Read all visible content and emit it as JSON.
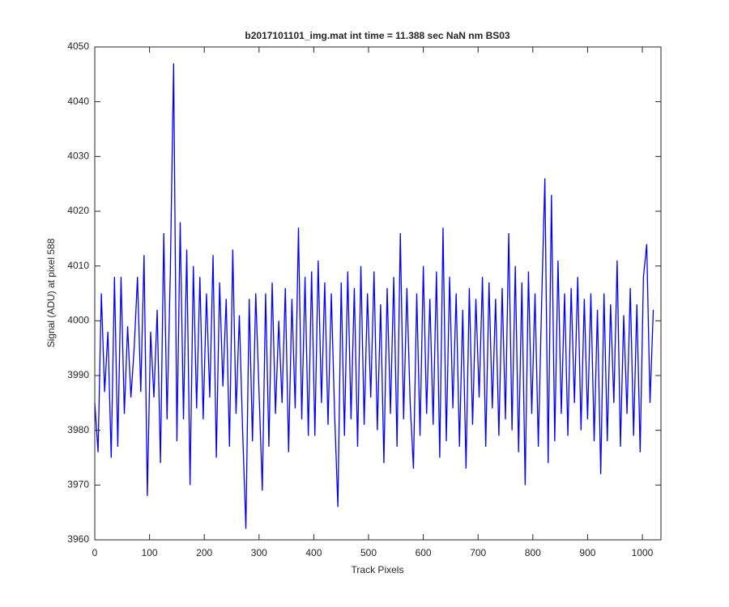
{
  "chart_data": {
    "type": "line",
    "title": "b2017101101_img.mat int time = 11.388 sec  NaN nm BS03",
    "x_label": "Track Pixels",
    "y_label": "Signal (ADU) at pixel 588",
    "color": "#0000ff",
    "xlim": [
      0,
      1034
    ],
    "ylim": [
      3960,
      4050
    ],
    "xticks": [
      0,
      100,
      200,
      300,
      400,
      500,
      600,
      700,
      800,
      900,
      1000
    ],
    "yticks": [
      3960,
      3970,
      3980,
      3990,
      4000,
      4010,
      4020,
      4030,
      4040,
      4050
    ],
    "x": [
      0,
      6,
      12,
      18,
      24,
      30,
      36,
      42,
      48,
      54,
      60,
      66,
      72,
      78,
      84,
      90,
      96,
      102,
      108,
      114,
      120,
      126,
      132,
      138,
      144,
      150,
      156,
      162,
      168,
      174,
      180,
      186,
      192,
      198,
      204,
      210,
      216,
      222,
      228,
      234,
      240,
      246,
      252,
      258,
      264,
      270,
      276,
      282,
      288,
      294,
      300,
      306,
      312,
      318,
      324,
      330,
      336,
      342,
      348,
      354,
      360,
      366,
      372,
      378,
      384,
      390,
      396,
      402,
      408,
      414,
      420,
      426,
      432,
      438,
      444,
      450,
      456,
      462,
      468,
      474,
      480,
      486,
      492,
      498,
      504,
      510,
      516,
      522,
      528,
      534,
      540,
      546,
      552,
      558,
      564,
      570,
      576,
      582,
      588,
      594,
      600,
      606,
      612,
      618,
      624,
      630,
      636,
      642,
      648,
      654,
      660,
      666,
      672,
      678,
      684,
      690,
      696,
      702,
      708,
      714,
      720,
      726,
      732,
      738,
      744,
      750,
      756,
      762,
      768,
      774,
      780,
      786,
      792,
      798,
      804,
      810,
      816,
      822,
      828,
      834,
      840,
      846,
      852,
      858,
      864,
      870,
      876,
      882,
      888,
      894,
      900,
      906,
      912,
      918,
      924,
      930,
      936,
      942,
      948,
      954,
      960,
      966,
      972,
      978,
      984,
      990,
      996,
      1002,
      1008,
      1014,
      1020
    ],
    "values": [
      3985,
      3976,
      4005,
      3987,
      3998,
      3975,
      4008,
      3977,
      4008,
      3983,
      3999,
      3986,
      3995,
      4008,
      3987,
      4012,
      3968,
      3998,
      3986,
      4002,
      3974,
      4016,
      3982,
      4009,
      4047,
      3978,
      4018,
      3982,
      4013,
      3970,
      4010,
      3984,
      4008,
      3982,
      4005,
      3986,
      4012,
      3975,
      4007,
      3988,
      4004,
      3977,
      4013,
      3983,
      4001,
      3980,
      3962,
      4004,
      3978,
      4005,
      3987,
      3969,
      4005,
      3977,
      4007,
      3983,
      4000,
      3985,
      4006,
      3976,
      4004,
      3984,
      4017,
      3982,
      4008,
      3979,
      4009,
      3979,
      4011,
      3985,
      4007,
      3981,
      4005,
      3983,
      3966,
      4007,
      3979,
      4009,
      3982,
      4006,
      3977,
      4010,
      3981,
      4005,
      3986,
      4009,
      3980,
      4003,
      3974,
      4006,
      3983,
      4008,
      3977,
      4016,
      3982,
      4006,
      3985,
      3973,
      4005,
      3979,
      4010,
      3983,
      4004,
      3981,
      4009,
      3975,
      4017,
      3978,
      4008,
      3984,
      4005,
      3977,
      4002,
      3973,
      4006,
      3981,
      4004,
      3986,
      4008,
      3977,
      4007,
      3984,
      4004,
      3979,
      4006,
      3982,
      4016,
      3980,
      4010,
      3976,
      4007,
      3970,
      4009,
      3983,
      4005,
      3977,
      4003,
      4026,
      3974,
      4023,
      3978,
      4011,
      3983,
      4005,
      3979,
      4006,
      3985,
      4008,
      3980,
      4004,
      3982,
      4005,
      3978,
      4002,
      3972,
      4005,
      3978,
      4003,
      3985,
      4011,
      3977,
      4001,
      3983,
      4006,
      3979,
      4003,
      3976,
      4008,
      4014,
      3985,
      4002
    ]
  }
}
